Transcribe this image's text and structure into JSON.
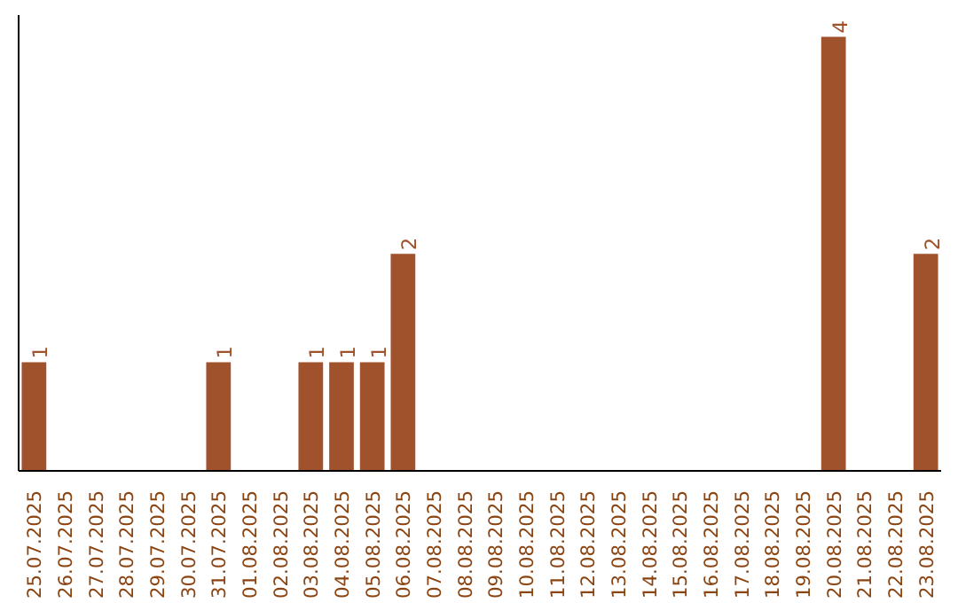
{
  "chart_data": {
    "type": "bar",
    "categories": [
      "25.07.2025",
      "26.07.2025",
      "27.07.2025",
      "28.07.2025",
      "29.07.2025",
      "30.07.2025",
      "31.07.2025",
      "01.08.2025",
      "02.08.2025",
      "03.08.2025",
      "04.08.2025",
      "05.08.2025",
      "06.08.2025",
      "07.08.2025",
      "08.08.2025",
      "09.08.2025",
      "10.08.2025",
      "11.08.2025",
      "12.08.2025",
      "13.08.2025",
      "14.08.2025",
      "15.08.2025",
      "16.08.2025",
      "17.08.2025",
      "18.08.2025",
      "19.08.2025",
      "20.08.2025",
      "21.08.2025",
      "22.08.2025",
      "23.08.2025"
    ],
    "values": [
      1,
      0,
      0,
      0,
      0,
      0,
      1,
      0,
      0,
      1,
      1,
      1,
      2,
      0,
      0,
      0,
      0,
      0,
      0,
      0,
      0,
      0,
      0,
      0,
      0,
      0,
      4,
      0,
      0,
      2
    ],
    "value_labels": [
      "1",
      null,
      null,
      null,
      null,
      null,
      "1",
      null,
      null,
      "1",
      "1",
      "1",
      "2",
      null,
      null,
      null,
      null,
      null,
      null,
      null,
      null,
      null,
      null,
      null,
      null,
      null,
      "4",
      null,
      null,
      "2"
    ],
    "color": "#a0522d",
    "ylim": [
      0,
      4.2
    ],
    "grid": false
  }
}
